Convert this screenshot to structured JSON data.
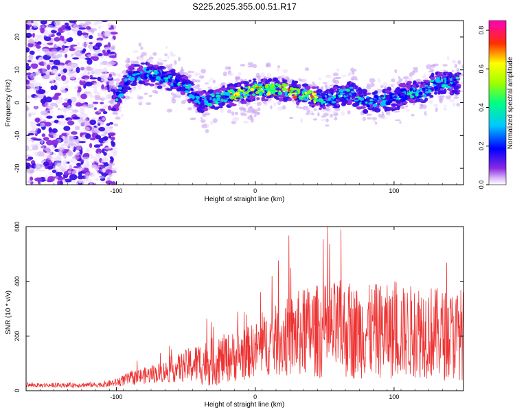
{
  "chart_data": [
    {
      "type": "heatmap",
      "title": "S225.2025.355.00.51.R17",
      "xlabel": "Height of straight line (km)",
      "ylabel": "Frequency (Hz)",
      "xlim": [
        -165,
        150
      ],
      "ylim": [
        -25,
        25
      ],
      "xticks": [
        -100,
        0,
        100
      ],
      "yticks": [
        -20,
        -10,
        0,
        10,
        20
      ],
      "colorbar": {
        "label": "Normalized spectral amplitude",
        "range": [
          0.0,
          0.85
        ],
        "ticks": [
          0.0,
          0.2,
          0.4,
          0.6,
          0.8
        ],
        "colormap": [
          "#ffffff",
          "#8a2be2",
          "#0000ff",
          "#00ffff",
          "#00ff00",
          "#ffff00",
          "#ff0000",
          "#ff00ff"
        ]
      },
      "trace_centerline": {
        "x": [
          -100,
          -90,
          -80,
          -70,
          -60,
          -50,
          -40,
          -30,
          -20,
          -10,
          0,
          10,
          20,
          30,
          40,
          50,
          60,
          70,
          80,
          90,
          100,
          110,
          120,
          130,
          145
        ],
        "y": [
          1,
          8,
          9,
          8,
          7,
          5,
          0,
          1,
          2,
          3,
          4,
          4,
          4,
          3,
          2,
          1,
          2,
          3,
          0,
          1,
          1,
          3,
          3,
          6,
          6
        ]
      },
      "noise_region_x": [
        -165,
        -105
      ]
    },
    {
      "type": "line",
      "title": "",
      "xlabel": "Height of straight line (km)",
      "ylabel": "SNR (10 * v/v)",
      "xlim": [
        -165,
        150
      ],
      "ylim": [
        0,
        600
      ],
      "xticks": [
        -100,
        0,
        100
      ],
      "yticks": [
        0,
        200,
        400,
        600
      ],
      "color": "#ee3333",
      "envelope": {
        "x": [
          -165,
          -140,
          -110,
          -100,
          -90,
          -80,
          -70,
          -60,
          -50,
          -40,
          -30,
          -20,
          -10,
          0,
          10,
          20,
          30,
          40,
          50,
          60,
          70,
          80,
          90,
          100,
          110,
          120,
          130,
          140,
          150
        ],
        "mean": [
          20,
          20,
          22,
          30,
          45,
          55,
          65,
          75,
          90,
          100,
          105,
          120,
          130,
          150,
          175,
          190,
          205,
          220,
          215,
          225,
          215,
          215,
          220,
          210,
          215,
          225,
          210,
          200,
          210
        ],
        "spread": [
          8,
          8,
          10,
          15,
          25,
          30,
          35,
          45,
          60,
          80,
          90,
          90,
          95,
          100,
          120,
          140,
          160,
          170,
          175,
          180,
          175,
          170,
          175,
          170,
          170,
          180,
          170,
          165,
          170
        ]
      }
    }
  ]
}
